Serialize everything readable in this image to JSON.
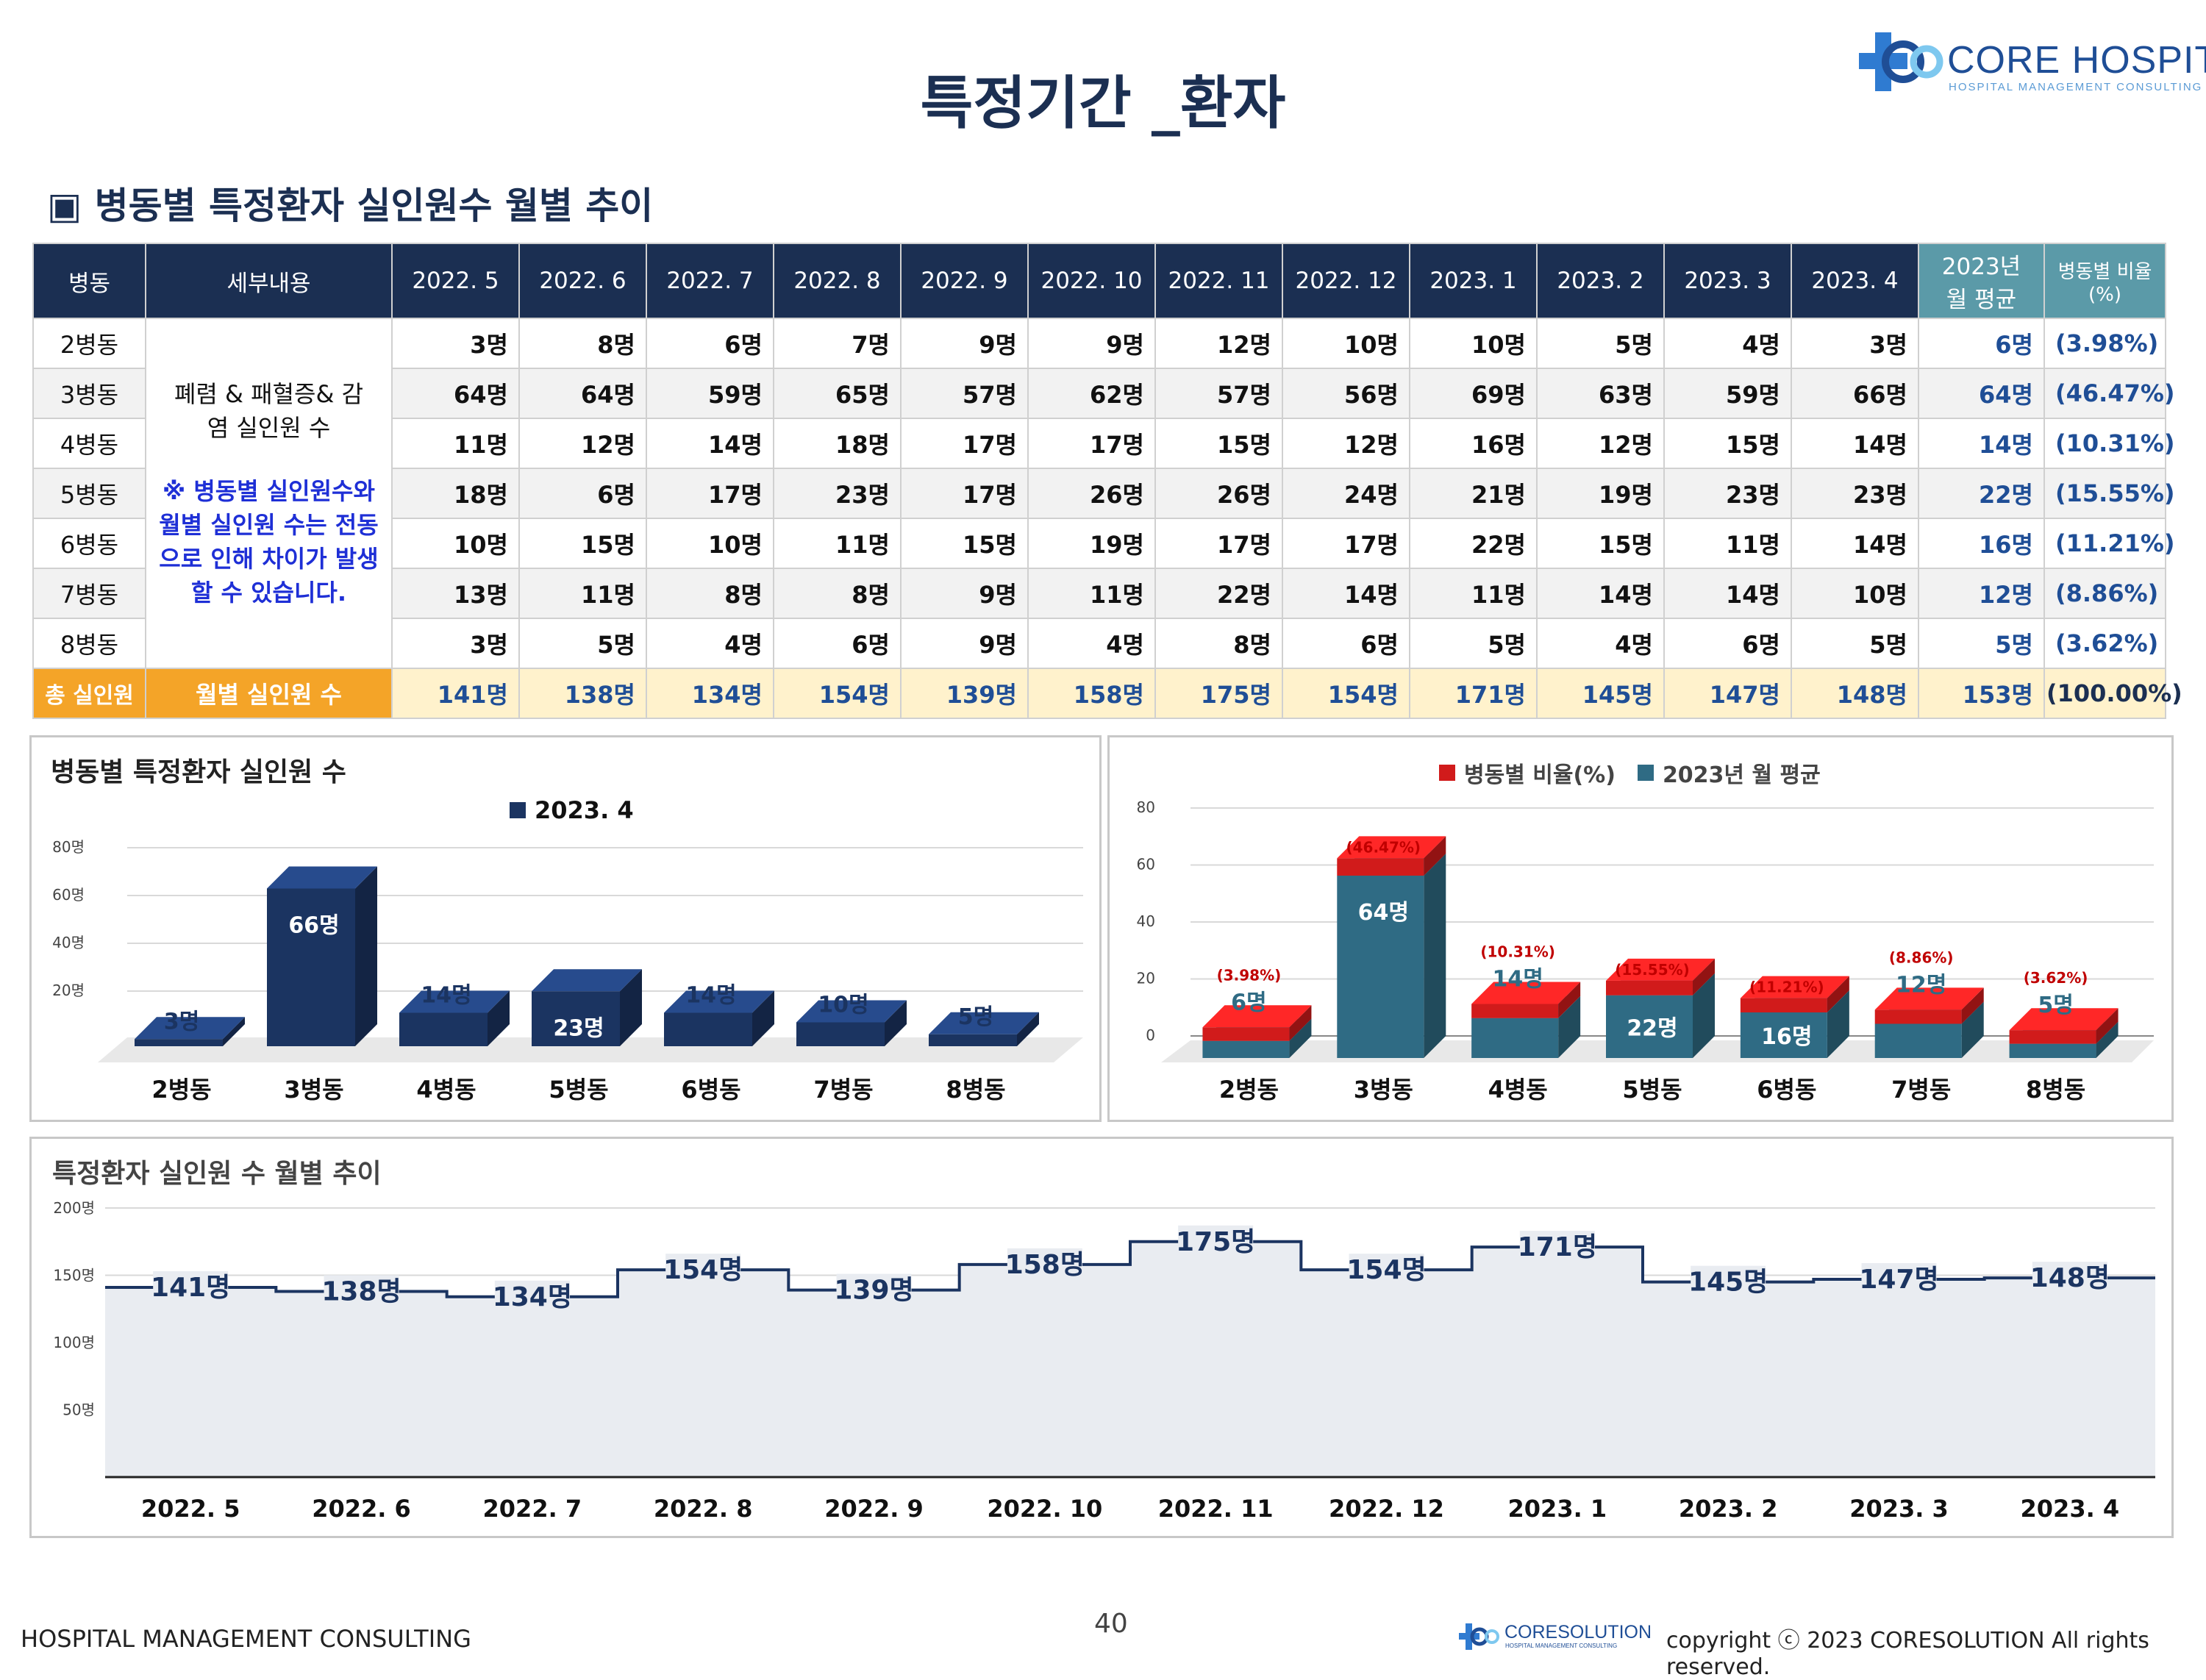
{
  "page": {
    "title": "특정기간 _환자",
    "section_title": "▣ 병동별 특정환자 실인원수 월별 추이",
    "page_number": "40"
  },
  "logo": {
    "name": "CORE HOSPITAL",
    "subtitle": "HOSPITAL MANAGEMENT CONSULTING"
  },
  "footer": {
    "left": "HOSPITAL MANAGEMENT CONSULTING",
    "brand": "CORESOLUTION",
    "brand_sub": "HOSPITAL MANAGEMENT CONSULTING",
    "copyright": "copyright ⓒ 2023 CORESOLUTION All rights reserved."
  },
  "table": {
    "headers": [
      "병동",
      "세부내용",
      "2022. 5",
      "2022. 6",
      "2022. 7",
      "2022. 8",
      "2022. 9",
      "2022. 10",
      "2022. 11",
      "2022. 12",
      "2023. 1",
      "2023. 2",
      "2023. 3",
      "2023. 4",
      "2023년 월 평균",
      "병동별 비율(%)"
    ],
    "detail_text": "폐렴 & 패혈증& 감염 실인원 수",
    "note_text": "※ 병동별 실인원수와 월별 실인원 수는 전동으로 인해 차이가 발생할 수 있습니다.",
    "rows": [
      {
        "ward": "2병동",
        "values": [
          "3명",
          "8명",
          "6명",
          "7명",
          "9명",
          "9명",
          "12명",
          "10명",
          "10명",
          "5명",
          "4명",
          "3명"
        ],
        "avg": "6명",
        "pct": "(3.98%)"
      },
      {
        "ward": "3병동",
        "values": [
          "64명",
          "64명",
          "59명",
          "65명",
          "57명",
          "62명",
          "57명",
          "56명",
          "69명",
          "63명",
          "59명",
          "66명"
        ],
        "avg": "64명",
        "pct": "(46.47%)"
      },
      {
        "ward": "4병동",
        "values": [
          "11명",
          "12명",
          "14명",
          "18명",
          "17명",
          "17명",
          "15명",
          "12명",
          "16명",
          "12명",
          "15명",
          "14명"
        ],
        "avg": "14명",
        "pct": "(10.31%)"
      },
      {
        "ward": "5병동",
        "values": [
          "18명",
          "6명",
          "17명",
          "23명",
          "17명",
          "26명",
          "26명",
          "24명",
          "21명",
          "19명",
          "23명",
          "23명"
        ],
        "avg": "22명",
        "pct": "(15.55%)"
      },
      {
        "ward": "6병동",
        "values": [
          "10명",
          "15명",
          "10명",
          "11명",
          "15명",
          "19명",
          "17명",
          "17명",
          "22명",
          "15명",
          "11명",
          "14명"
        ],
        "avg": "16명",
        "pct": "(11.21%)"
      },
      {
        "ward": "7병동",
        "values": [
          "13명",
          "11명",
          "8명",
          "8명",
          "9명",
          "11명",
          "22명",
          "14명",
          "11명",
          "14명",
          "14명",
          "10명"
        ],
        "avg": "12명",
        "pct": "(8.86%)"
      },
      {
        "ward": "8병동",
        "values": [
          "3명",
          "5명",
          "4명",
          "6명",
          "9명",
          "4명",
          "8명",
          "6명",
          "5명",
          "4명",
          "6명",
          "5명"
        ],
        "avg": "5명",
        "pct": "(3.62%)"
      }
    ],
    "total": {
      "label": "총 실인원",
      "detail": "월별 실인원 수",
      "values": [
        "141명",
        "138명",
        "134명",
        "154명",
        "139명",
        "158명",
        "175명",
        "154명",
        "171명",
        "145명",
        "147명",
        "148명"
      ],
      "avg": "153명",
      "pct": "(100.00%)"
    }
  },
  "chart_data": [
    {
      "type": "bar",
      "title": "병동별 특정환자 실인원 수",
      "legend": [
        "2023. 4"
      ],
      "categories": [
        "2병동",
        "3병동",
        "4병동",
        "5병동",
        "6병동",
        "7병동",
        "8병동"
      ],
      "values": [
        3,
        66,
        14,
        23,
        14,
        10,
        5
      ],
      "labels": [
        "3명",
        "66명",
        "14명",
        "23명",
        "14명",
        "10명",
        "5명"
      ],
      "yticks": [
        "20명",
        "40명",
        "60명",
        "80명"
      ],
      "ylim": [
        0,
        80
      ],
      "color": "#1b3461"
    },
    {
      "type": "bar",
      "title": "",
      "legend": [
        "병동별 비율(%)",
        "2023년 월 평균"
      ],
      "categories": [
        "2병동",
        "3병동",
        "4병동",
        "5병동",
        "6병동",
        "7병동",
        "8병동"
      ],
      "series": [
        {
          "name": "2023년 월 평균",
          "values": [
            6,
            64,
            14,
            22,
            16,
            12,
            5
          ],
          "labels": [
            "6명",
            "64명",
            "14명",
            "22명",
            "16명",
            "12명",
            "5명"
          ],
          "color": "#2f6b84"
        },
        {
          "name": "병동별 비율(%)",
          "values": [
            3.98,
            46.47,
            10.31,
            15.55,
            11.21,
            8.86,
            3.62
          ],
          "labels": [
            "(3.98%)",
            "(46.47%)",
            "(10.31%)",
            "(15.55%)",
            "(11.21%)",
            "(8.86%)",
            "(3.62%)"
          ],
          "color": "#d11b1b"
        }
      ],
      "yticks": [
        "0",
        "20",
        "40",
        "60",
        "80"
      ],
      "ylim": [
        0,
        80
      ]
    },
    {
      "type": "area",
      "title": "특정환자 실인원 수 월별 추이",
      "categories": [
        "2022. 5",
        "2022. 6",
        "2022. 7",
        "2022. 8",
        "2022. 9",
        "2022. 10",
        "2022. 11",
        "2022. 12",
        "2023. 1",
        "2023. 2",
        "2023. 3",
        "2023. 4"
      ],
      "values": [
        141,
        138,
        134,
        154,
        139,
        158,
        175,
        154,
        171,
        145,
        147,
        148
      ],
      "labels": [
        "141명",
        "138명",
        "134명",
        "154명",
        "139명",
        "158명",
        "175명",
        "154명",
        "171명",
        "145명",
        "147명",
        "148명"
      ],
      "yticks": [
        "50명",
        "100명",
        "150명",
        "200명"
      ],
      "ylim": [
        0,
        200
      ],
      "line_color": "#1b3461",
      "fill_color": "#e9ecf1"
    }
  ]
}
